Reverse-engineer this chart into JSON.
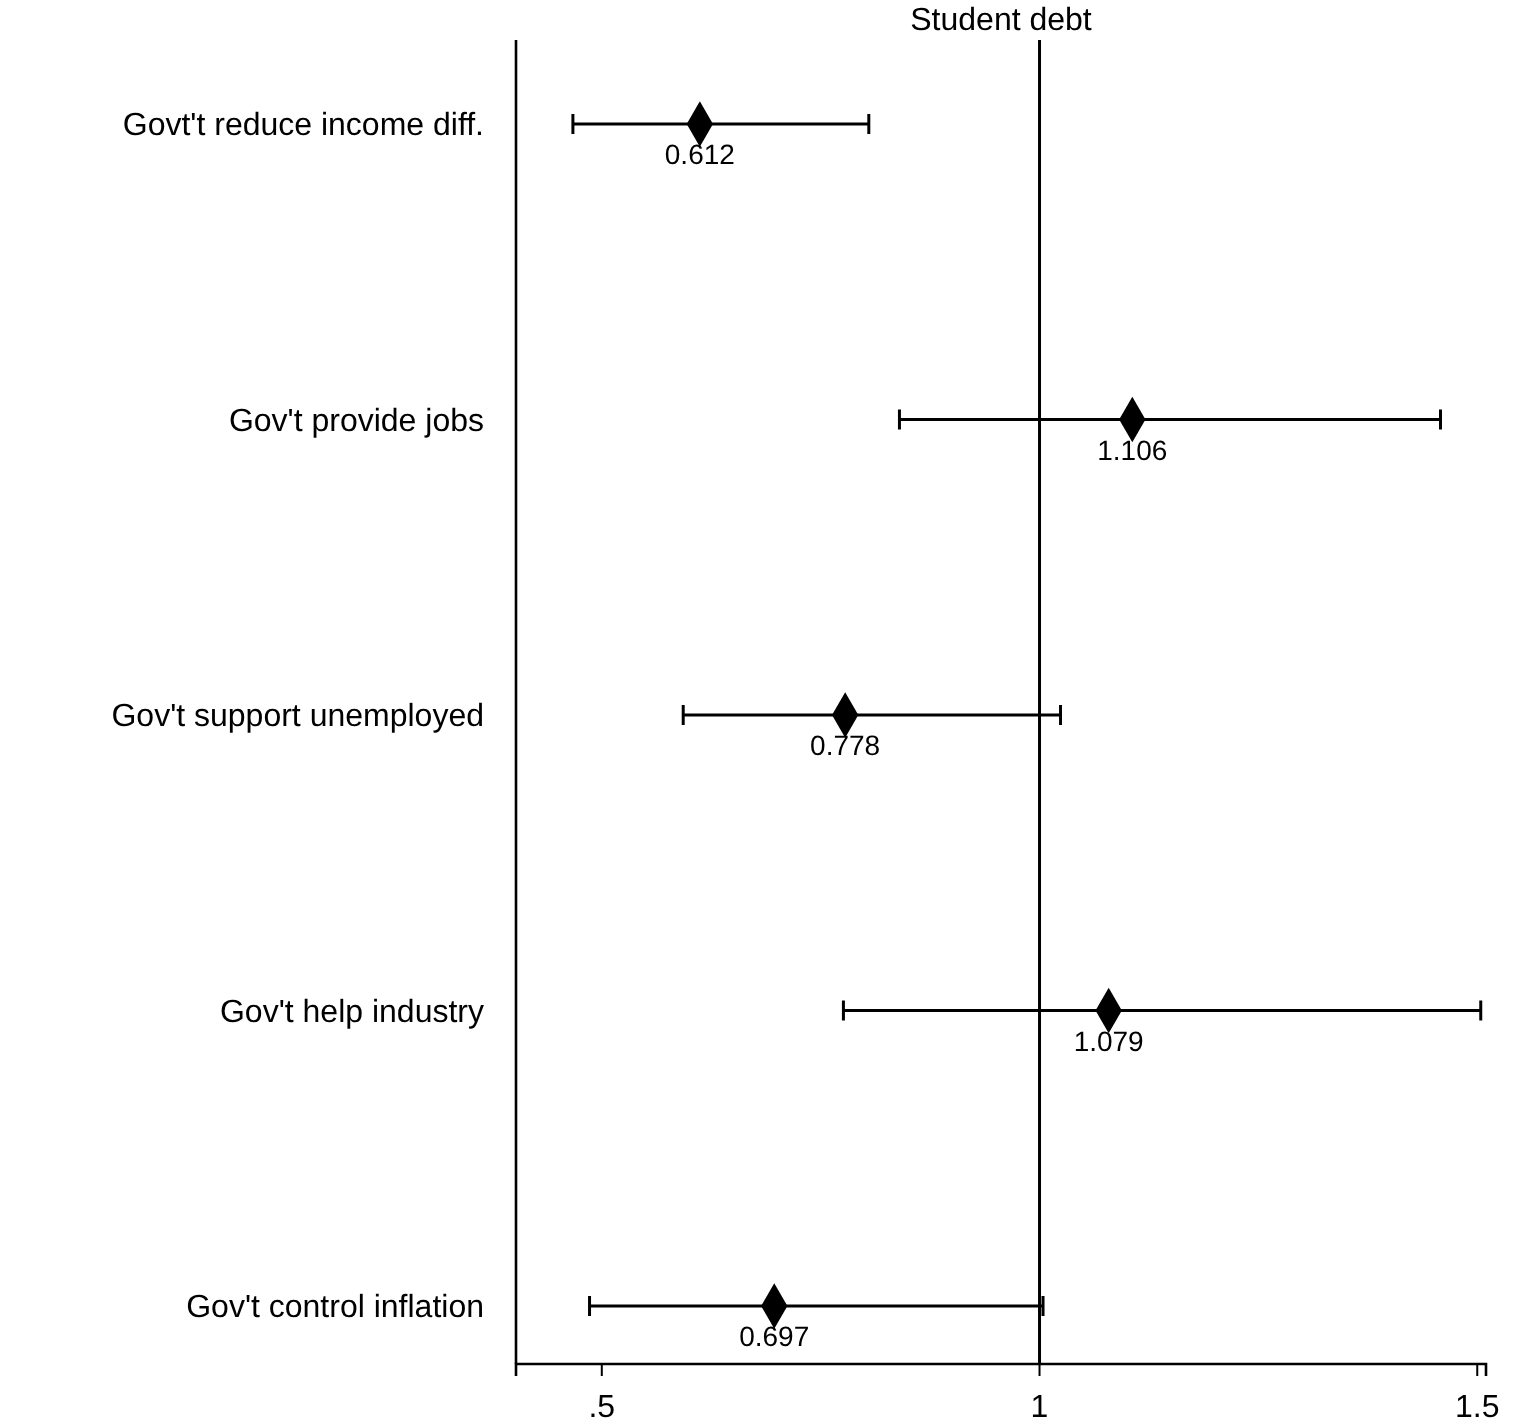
{
  "chart_data": {
    "type": "scatter",
    "orientation": "horizontal",
    "title": "Student debt",
    "categories": [
      "Govt't reduce income diff.",
      "Gov't provide jobs",
      "Gov't support unemployed",
      "Gov't help industry",
      "Gov't control inflation"
    ],
    "values": [
      0.612,
      1.106,
      0.778,
      1.079,
      0.697
    ],
    "errors": [
      [
        0.467,
        0.805
      ],
      [
        0.84,
        1.458
      ],
      [
        0.593,
        1.024
      ],
      [
        0.776,
        1.504
      ],
      [
        0.486,
        1.004
      ]
    ],
    "color": "#000000",
    "marker": "diamond",
    "data_labels": true,
    "xlim": [
      0.402,
      1.51
    ],
    "xticks": [
      {
        "value": 0.5,
        "label": ".5"
      },
      1,
      1.5
    ],
    "ref_lines": [
      {
        "axis": "x",
        "value": 1,
        "color": "#000000"
      }
    ],
    "grid": false
  }
}
